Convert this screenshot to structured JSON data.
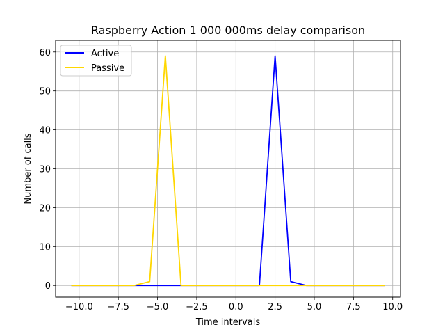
{
  "chart_data": {
    "type": "line",
    "title": "Raspberry Action 1 000 000ms delay comparison",
    "xlabel": "Time intervals",
    "ylabel": "Number of calls",
    "xlim": [
      -11.5,
      10.5
    ],
    "ylim": [
      -3,
      63
    ],
    "xticks": [
      -10.0,
      -7.5,
      -5.0,
      -2.5,
      0.0,
      2.5,
      5.0,
      7.5,
      10.0
    ],
    "xtick_labels": [
      "−10.0",
      "−7.5",
      "−5.0",
      "−2.5",
      "0.0",
      "2.5",
      "5.0",
      "7.5",
      "10.0"
    ],
    "yticks": [
      0,
      10,
      20,
      30,
      40,
      50,
      60
    ],
    "ytick_labels": [
      "0",
      "10",
      "20",
      "30",
      "40",
      "50",
      "60"
    ],
    "grid": true,
    "legend_position": "top-left",
    "x": [
      -10.5,
      -9.5,
      -8.5,
      -7.5,
      -6.5,
      -5.5,
      -4.5,
      -3.5,
      -2.5,
      -1.5,
      -0.5,
      0.5,
      1.5,
      2.5,
      3.5,
      4.5,
      5.5,
      6.5,
      7.5,
      8.5,
      9.5
    ],
    "series": [
      {
        "name": "Active",
        "color": "#0000ff",
        "values": [
          0,
          0,
          0,
          0,
          0,
          0,
          0,
          0,
          0,
          0,
          0,
          0,
          0,
          59,
          1,
          0,
          0,
          0,
          0,
          0,
          0
        ]
      },
      {
        "name": "Passive",
        "color": "#ffd700",
        "values": [
          0,
          0,
          0,
          0,
          0,
          1,
          59,
          0,
          0,
          0,
          0,
          0,
          0,
          0,
          0,
          0,
          0,
          0,
          0,
          0,
          0
        ]
      }
    ]
  }
}
